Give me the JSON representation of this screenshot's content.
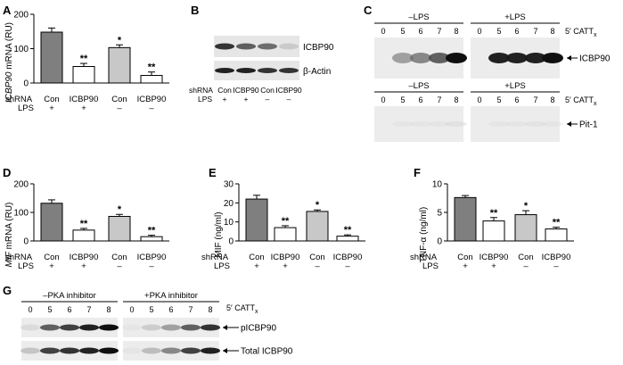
{
  "figure": {
    "bar_colors": [
      "#7f7f7f",
      "#ffffff",
      "#c8c8c8",
      "#ffffff"
    ],
    "row_labels": [
      "shRNA",
      "LPS"
    ],
    "shrna_values": [
      "Con",
      "ICBP90",
      "Con",
      "ICBP90"
    ],
    "lps_values": [
      "+",
      "+",
      "–",
      "–"
    ]
  },
  "chart_data": [
    {
      "panel": "A",
      "type": "bar",
      "ylabel": "ICBP90 mRNA (RU)",
      "categories": [
        "Con",
        "ICBP90",
        "Con",
        "ICBP90"
      ],
      "values": [
        148,
        48,
        103,
        22
      ],
      "errors": [
        12,
        9,
        8,
        10
      ],
      "significance": [
        "",
        "**",
        "*",
        "**"
      ],
      "ylim": [
        0,
        200
      ],
      "yticks": [
        0,
        100,
        200
      ]
    },
    {
      "panel": "D",
      "type": "bar",
      "ylabel": "MIF mRNA (RU)",
      "categories": [
        "Con",
        "ICBP90",
        "Con",
        "ICBP90"
      ],
      "values": [
        132,
        38,
        86,
        15
      ],
      "errors": [
        12,
        6,
        7,
        5
      ],
      "significance": [
        "",
        "**",
        "*",
        "**"
      ],
      "ylim": [
        0,
        200
      ],
      "yticks": [
        0,
        100,
        200
      ]
    },
    {
      "panel": "E",
      "type": "bar",
      "ylabel": "MIF (ng/ml)",
      "categories": [
        "Con",
        "ICBP90",
        "Con",
        "ICBP90"
      ],
      "values": [
        22,
        7,
        15.5,
        2.5
      ],
      "errors": [
        2,
        1,
        0.8,
        0.7
      ],
      "significance": [
        "",
        "**",
        "*",
        "**"
      ],
      "ylim": [
        0,
        30
      ],
      "yticks": [
        0,
        10,
        20,
        30
      ]
    },
    {
      "panel": "F",
      "type": "bar",
      "ylabel": "TNF-α (ng/ml)",
      "categories": [
        "Con",
        "ICBP90",
        "Con",
        "ICBP90"
      ],
      "values": [
        7.6,
        3.5,
        4.6,
        2.1
      ],
      "errors": [
        0.35,
        0.6,
        0.7,
        0.3
      ],
      "significance": [
        "",
        "**",
        "*",
        "**"
      ],
      "ylim": [
        0,
        10
      ],
      "yticks": [
        0,
        5,
        10
      ]
    }
  ],
  "blot_b": {
    "label": "B",
    "bands": [
      "ICBP90",
      "β-Actin"
    ],
    "shrna": [
      "Con",
      "ICBP90",
      "Con",
      "ICBP90"
    ],
    "lps": [
      "+",
      "+",
      "–",
      "–"
    ],
    "icbp90_intensity": [
      0.9,
      0.75,
      0.7,
      0.25
    ],
    "actin_intensity": [
      0.95,
      0.95,
      0.9,
      0.9
    ]
  },
  "blot_c": {
    "label": "C",
    "groups": [
      "–LPS",
      "+LPS"
    ],
    "lanes": [
      "0",
      "5",
      "6",
      "7",
      "8"
    ],
    "axis_label": "5′ CATT",
    "axis_sub": "x",
    "bands": [
      "ICBP90",
      "Pit-1"
    ],
    "icbp90_minus": [
      0,
      0.5,
      0.6,
      0.75,
      1.0
    ],
    "icbp90_plus": [
      0,
      0.95,
      0.95,
      0.95,
      1.0
    ],
    "pit1_minus": [
      0,
      0.05,
      0.05,
      0.05,
      0.1
    ],
    "pit1_plus": [
      0,
      0.05,
      0.05,
      0.08,
      0.05
    ]
  },
  "blot_g": {
    "label": "G",
    "groups": [
      "–PKA inhibitor",
      "+PKA inhibitor"
    ],
    "lanes": [
      "0",
      "5",
      "6",
      "7",
      "8"
    ],
    "axis_label": "5′ CATT",
    "axis_sub": "x",
    "bands": [
      "pICBP90",
      "Total ICBP90"
    ],
    "p_minus": [
      0.15,
      0.75,
      0.85,
      0.95,
      1.0
    ],
    "p_plus": [
      0.05,
      0.25,
      0.5,
      0.75,
      0.9
    ],
    "t_minus": [
      0.3,
      0.85,
      0.9,
      0.95,
      1.0
    ],
    "t_plus": [
      0.05,
      0.35,
      0.6,
      0.85,
      0.95
    ]
  }
}
